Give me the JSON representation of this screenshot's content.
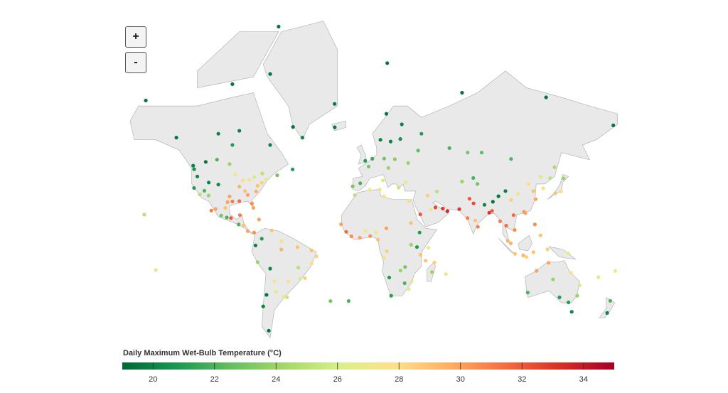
{
  "zoom_controls": [
    "+",
    "-"
  ],
  "legend": {
    "title": "Daily Maximum Wet-Bulb Temperature (°C)",
    "range": [
      19,
      35
    ],
    "ticks": [
      20,
      22,
      24,
      26,
      28,
      30,
      32,
      34
    ],
    "colors": [
      "#006837",
      "#1a9850",
      "#66bd63",
      "#a6d96a",
      "#d9ef8b",
      "#fee08b",
      "#fdae61",
      "#f46d43",
      "#d73027",
      "#a50026"
    ]
  },
  "points": [
    {
      "lon": -74,
      "lat": 40.7,
      "value": 28.5
    },
    {
      "lon": -77,
      "lat": 39,
      "value": 29
    },
    {
      "lon": -84,
      "lat": 33.7,
      "value": 30
    },
    {
      "lon": -90,
      "lat": 30,
      "value": 31.5
    },
    {
      "lon": -95,
      "lat": 29.8,
      "value": 31
    },
    {
      "lon": -97,
      "lat": 32.8,
      "value": 30
    },
    {
      "lon": -81,
      "lat": 28.5,
      "value": 30.5
    },
    {
      "lon": -80,
      "lat": 25.8,
      "value": 30
    },
    {
      "lon": -87.6,
      "lat": 41.9,
      "value": 28
    },
    {
      "lon": -93,
      "lat": 45,
      "value": 27
    },
    {
      "lon": -83,
      "lat": 42.3,
      "value": 27.5
    },
    {
      "lon": -71,
      "lat": 42.4,
      "value": 26.5
    },
    {
      "lon": -90,
      "lat": 38.6,
      "value": 29.5
    },
    {
      "lon": -86,
      "lat": 36,
      "value": 29
    },
    {
      "lon": -78,
      "lat": 35.8,
      "value": 29.5
    },
    {
      "lon": -98.5,
      "lat": 29.4,
      "value": 30
    },
    {
      "lon": -118.2,
      "lat": 34,
      "value": 25
    },
    {
      "lon": -122.4,
      "lat": 37.8,
      "value": 21
    },
    {
      "lon": -122.3,
      "lat": 47.6,
      "value": 20.5
    },
    {
      "lon": -112,
      "lat": 33.4,
      "value": 24
    },
    {
      "lon": -105,
      "lat": 39.7,
      "value": 20
    },
    {
      "lon": -111.9,
      "lat": 40.8,
      "value": 20
    },
    {
      "lon": -115,
      "lat": 36.2,
      "value": 22
    },
    {
      "lon": -120,
      "lat": 44,
      "value": 20
    },
    {
      "lon": -79.4,
      "lat": 43.7,
      "value": 26
    },
    {
      "lon": -73.6,
      "lat": 45.5,
      "value": 25
    },
    {
      "lon": -114,
      "lat": 51,
      "value": 19.5
    },
    {
      "lon": -123,
      "lat": 49.3,
      "value": 20
    },
    {
      "lon": -97,
      "lat": 50,
      "value": 24
    },
    {
      "lon": -106,
      "lat": 52,
      "value": 22
    },
    {
      "lon": -63,
      "lat": 44.6,
      "value": 23
    },
    {
      "lon": -105,
      "lat": 62,
      "value": 20
    },
    {
      "lon": -135,
      "lat": 60.7,
      "value": 19.5
    },
    {
      "lon": -95,
      "lat": 58,
      "value": 21
    },
    {
      "lon": -68,
      "lat": 58,
      "value": 20
    },
    {
      "lon": -52,
      "lat": 47.5,
      "value": 21
    },
    {
      "lon": -99,
      "lat": 19.4,
      "value": 22
    },
    {
      "lon": -103,
      "lat": 20.7,
      "value": 23
    },
    {
      "lon": -100,
      "lat": 25.7,
      "value": 29
    },
    {
      "lon": -89.6,
      "lat": 21,
      "value": 31
    },
    {
      "lon": -96,
      "lat": 19,
      "value": 32
    },
    {
      "lon": -107,
      "lat": 25,
      "value": 30
    },
    {
      "lon": -110,
      "lat": 24,
      "value": 31
    },
    {
      "lon": -90.5,
      "lat": 14.6,
      "value": 22
    },
    {
      "lon": -87,
      "lat": 14,
      "value": 29
    },
    {
      "lon": -84,
      "lat": 10,
      "value": 30
    },
    {
      "lon": -79.5,
      "lat": 9,
      "value": 30.5
    },
    {
      "lon": -76,
      "lat": 18,
      "value": 30
    },
    {
      "lon": -51.7,
      "lat": 64.2,
      "value": 19.5
    },
    {
      "lon": -68,
      "lat": 76.5,
      "value": 19.5
    },
    {
      "lon": -22,
      "lat": 70.5,
      "value": 19.5
    },
    {
      "lon": -45,
      "lat": 60.7,
      "value": 20
    },
    {
      "lon": -74,
      "lat": 4.6,
      "value": 21
    },
    {
      "lon": -66.9,
      "lat": 10.5,
      "value": 29
    },
    {
      "lon": -60,
      "lat": 3,
      "value": 28
    },
    {
      "lon": -48.5,
      "lat": -1.4,
      "value": 29
    },
    {
      "lon": -38.5,
      "lat": -3.7,
      "value": 29
    },
    {
      "lon": -60,
      "lat": -3.1,
      "value": 29.5
    },
    {
      "lon": -35,
      "lat": -8,
      "value": 28.5
    },
    {
      "lon": -38.5,
      "lat": -13,
      "value": 28
    },
    {
      "lon": -43.2,
      "lat": -22.9,
      "value": 28.5
    },
    {
      "lon": -46.6,
      "lat": -23.5,
      "value": 26
    },
    {
      "lon": -47.9,
      "lat": -15.8,
      "value": 25
    },
    {
      "lon": -58.4,
      "lat": -34.6,
      "value": 27.5
    },
    {
      "lon": -56,
      "lat": -34.9,
      "value": 25.5
    },
    {
      "lon": -64,
      "lat": -31.4,
      "value": 26.5
    },
    {
      "lon": -70.6,
      "lat": -33.4,
      "value": 19.5
    },
    {
      "lon": -77,
      "lat": -12,
      "value": 24
    },
    {
      "lon": -78.5,
      "lat": -0.2,
      "value": 20
    },
    {
      "lon": -68,
      "lat": -16.5,
      "value": 20
    },
    {
      "lon": -73,
      "lat": -40,
      "value": 20
    },
    {
      "lon": -65,
      "lat": -25,
      "value": 27
    },
    {
      "lon": -55,
      "lat": -25,
      "value": 28
    },
    {
      "lon": -69,
      "lat": -52,
      "value": 19.5
    },
    {
      "lon": -0.1,
      "lat": 51.5,
      "value": 21
    },
    {
      "lon": 2.3,
      "lat": 48.9,
      "value": 23
    },
    {
      "lon": 13.4,
      "lat": 52.5,
      "value": 23
    },
    {
      "lon": -3.7,
      "lat": 40.4,
      "value": 22
    },
    {
      "lon": 12.5,
      "lat": 41.9,
      "value": 26
    },
    {
      "lon": 16.4,
      "lat": 48.2,
      "value": 24
    },
    {
      "lon": 21,
      "lat": 52.2,
      "value": 23.5
    },
    {
      "lon": 10.7,
      "lat": 59.9,
      "value": 20
    },
    {
      "lon": 18,
      "lat": 59.3,
      "value": 20
    },
    {
      "lon": 24.9,
      "lat": 60.2,
      "value": 20.5
    },
    {
      "lon": 37.6,
      "lat": 55.8,
      "value": 22.5
    },
    {
      "lon": 30.5,
      "lat": 50.5,
      "value": 24
    },
    {
      "lon": 28.9,
      "lat": 41,
      "value": 27
    },
    {
      "lon": 23.7,
      "lat": 38,
      "value": 25.5
    },
    {
      "lon": -9.1,
      "lat": 38.7,
      "value": 23
    },
    {
      "lon": 4.9,
      "lat": 52.4,
      "value": 21.5
    },
    {
      "lon": 26,
      "lat": 65,
      "value": 20
    },
    {
      "lon": 40,
      "lat": 62,
      "value": 21
    },
    {
      "lon": 15,
      "lat": 68,
      "value": 19.5
    },
    {
      "lon": -21.9,
      "lat": 64.1,
      "value": 19.5
    },
    {
      "lon": 60,
      "lat": 56.8,
      "value": 22
    },
    {
      "lon": 73,
      "lat": 55,
      "value": 23
    },
    {
      "lon": 83,
      "lat": 55,
      "value": 22.5
    },
    {
      "lon": 104,
      "lat": 52.3,
      "value": 22
    },
    {
      "lon": 135,
      "lat": 48.5,
      "value": 24.5
    },
    {
      "lon": 131.9,
      "lat": 43.1,
      "value": 25
    },
    {
      "lon": 69,
      "lat": 41.3,
      "value": 24
    },
    {
      "lon": 77,
      "lat": 43.2,
      "value": 22
    },
    {
      "lon": 51,
      "lat": 35.7,
      "value": 25
    },
    {
      "lon": 44.4,
      "lat": 33.3,
      "value": 28.5
    },
    {
      "lon": 50,
      "lat": 26,
      "value": 32.5
    },
    {
      "lon": 55.3,
      "lat": 25.3,
      "value": 33
    },
    {
      "lon": 58.6,
      "lat": 23.6,
      "value": 33.5
    },
    {
      "lon": 46.7,
      "lat": 24.7,
      "value": 27
    },
    {
      "lon": 39.2,
      "lat": 21.5,
      "value": 32
    },
    {
      "lon": 67,
      "lat": 24.9,
      "value": 33
    },
    {
      "lon": 74.3,
      "lat": 31.5,
      "value": 32
    },
    {
      "lon": 77.2,
      "lat": 28.6,
      "value": 32.5
    },
    {
      "lon": 88.4,
      "lat": 22.6,
      "value": 33
    },
    {
      "lon": 72.9,
      "lat": 19,
      "value": 31
    },
    {
      "lon": 80.3,
      "lat": 13,
      "value": 31
    },
    {
      "lon": 78.5,
      "lat": 17.4,
      "value": 29
    },
    {
      "lon": 90.4,
      "lat": 23.8,
      "value": 32
    },
    {
      "lon": 85,
      "lat": 27.7,
      "value": 20
    },
    {
      "lon": 91,
      "lat": 29.6,
      "value": 19.5
    },
    {
      "lon": 95,
      "lat": 33,
      "value": 19.5
    },
    {
      "lon": 100,
      "lat": 36,
      "value": 20
    },
    {
      "lon": 80,
      "lat": 40,
      "value": 23
    },
    {
      "lon": 116.4,
      "lat": 39.9,
      "value": 28
    },
    {
      "lon": 121.5,
      "lat": 31.2,
      "value": 30
    },
    {
      "lon": 113.3,
      "lat": 23.1,
      "value": 30.5
    },
    {
      "lon": 114.2,
      "lat": 22.3,
      "value": 30
    },
    {
      "lon": 104,
      "lat": 30.7,
      "value": 28.5
    },
    {
      "lon": 108.9,
      "lat": 34.3,
      "value": 27
    },
    {
      "lon": 126.9,
      "lat": 37.6,
      "value": 27.5
    },
    {
      "lon": 139.7,
      "lat": 35.7,
      "value": 28
    },
    {
      "lon": 135.5,
      "lat": 34.7,
      "value": 29
    },
    {
      "lon": 141.4,
      "lat": 43,
      "value": 24
    },
    {
      "lon": 125.3,
      "lat": 43.9,
      "value": 26
    },
    {
      "lon": 120,
      "lat": 36,
      "value": 29
    },
    {
      "lon": 106.6,
      "lat": 10.8,
      "value": 30.5
    },
    {
      "lon": 105.8,
      "lat": 21,
      "value": 31.5
    },
    {
      "lon": 100.5,
      "lat": 13.8,
      "value": 31.5
    },
    {
      "lon": 96.2,
      "lat": 16.8,
      "value": 31
    },
    {
      "lon": 101.7,
      "lat": 3.1,
      "value": 29.5
    },
    {
      "lon": 103.8,
      "lat": 1.3,
      "value": 29.5
    },
    {
      "lon": 106.8,
      "lat": -6.2,
      "value": 29
    },
    {
      "lon": 112.7,
      "lat": -7.3,
      "value": 29.5
    },
    {
      "lon": 121,
      "lat": 14.6,
      "value": 30.5
    },
    {
      "lon": 125,
      "lat": 7,
      "value": 29
    },
    {
      "lon": 115,
      "lat": -8.5,
      "value": 28.5
    },
    {
      "lon": 120,
      "lat": -5,
      "value": 29
    },
    {
      "lon": 130,
      "lat": -3,
      "value": 28.5
    },
    {
      "lon": 145,
      "lat": -6,
      "value": 27
    },
    {
      "lon": 31.2,
      "lat": 30,
      "value": 28
    },
    {
      "lon": 3,
      "lat": 36.7,
      "value": 27
    },
    {
      "lon": -7.6,
      "lat": 33.6,
      "value": 25
    },
    {
      "lon": 10.2,
      "lat": 36.8,
      "value": 28
    },
    {
      "lon": 13.2,
      "lat": 32.9,
      "value": 28
    },
    {
      "lon": -17.4,
      "lat": 14.7,
      "value": 30
    },
    {
      "lon": -4,
      "lat": 5.3,
      "value": 30
    },
    {
      "lon": 3.4,
      "lat": 6.5,
      "value": 30.5
    },
    {
      "lon": 7.5,
      "lat": 9,
      "value": 27
    },
    {
      "lon": 15,
      "lat": 12,
      "value": 30
    },
    {
      "lon": 32.5,
      "lat": 15.6,
      "value": 29
    },
    {
      "lon": 38.7,
      "lat": 9,
      "value": 21
    },
    {
      "lon": 36.8,
      "lat": -1.3,
      "value": 21
    },
    {
      "lon": 39.3,
      "lat": -6.8,
      "value": 29
    },
    {
      "lon": 32.6,
      "lat": 0.3,
      "value": 24
    },
    {
      "lon": 15.3,
      "lat": -4.3,
      "value": 28.5
    },
    {
      "lon": 13.2,
      "lat": -8.8,
      "value": 28
    },
    {
      "lon": 28,
      "lat": -26.2,
      "value": 22
    },
    {
      "lon": 18.4,
      "lat": -33.9,
      "value": 21
    },
    {
      "lon": 31,
      "lat": -29.9,
      "value": 26.5
    },
    {
      "lon": 33,
      "lat": -25,
      "value": 27
    },
    {
      "lon": 28.3,
      "lat": -15.4,
      "value": 23
    },
    {
      "lon": 47.5,
      "lat": -18.9,
      "value": 24
    },
    {
      "lon": 49.3,
      "lat": -12.3,
      "value": 28.5
    },
    {
      "lon": 45,
      "lat": -1.9,
      "value": 27
    },
    {
      "lon": 43,
      "lat": -11,
      "value": 29
    },
    {
      "lon": 25,
      "lat": -17.8,
      "value": 24
    },
    {
      "lon": 17,
      "lat": -22.5,
      "value": 21
    },
    {
      "lon": -13.7,
      "lat": 9.5,
      "value": 31.5
    },
    {
      "lon": -10,
      "lat": 6.3,
      "value": 30.5
    },
    {
      "lon": 0,
      "lat": 10,
      "value": 27
    },
    {
      "lon": 9,
      "lat": 4,
      "value": 29
    },
    {
      "lon": 151.2,
      "lat": -33.9,
      "value": 24
    },
    {
      "lon": 145,
      "lat": -37.8,
      "value": 21
    },
    {
      "lon": 153,
      "lat": -27.5,
      "value": 26
    },
    {
      "lon": 115.9,
      "lat": -32,
      "value": 22
    },
    {
      "lon": 138.6,
      "lat": -34.9,
      "value": 21
    },
    {
      "lon": 130.8,
      "lat": -12.5,
      "value": 30
    },
    {
      "lon": 146.8,
      "lat": -19.3,
      "value": 28
    },
    {
      "lon": 133.9,
      "lat": -23.7,
      "value": 24
    },
    {
      "lon": 122.2,
      "lat": -18,
      "value": 30
    },
    {
      "lon": 174.8,
      "lat": -36.9,
      "value": 22
    },
    {
      "lon": 172.6,
      "lat": -43.5,
      "value": 20
    },
    {
      "lon": 147.3,
      "lat": -42.9,
      "value": 20
    },
    {
      "lon": -157.9,
      "lat": 21.3,
      "value": 25
    },
    {
      "lon": -149.6,
      "lat": -17.5,
      "value": 27
    },
    {
      "lon": 178.4,
      "lat": -18.1,
      "value": 27.5
    },
    {
      "lon": 166.4,
      "lat": -22.3,
      "value": 26
    },
    {
      "lon": -25,
      "lat": -37,
      "value": 23
    },
    {
      "lon": -12,
      "lat": -37,
      "value": 22
    },
    {
      "lon": 57.5,
      "lat": -20.2,
      "value": 27
    },
    {
      "lon": -95,
      "lat": 74.7,
      "value": 19.5
    },
    {
      "lon": -62,
      "lat": 82.5,
      "value": 19.5
    },
    {
      "lon": 15.6,
      "lat": 78.2,
      "value": 19.5
    },
    {
      "lon": 69,
      "lat": 73,
      "value": 19.5
    },
    {
      "lon": 129,
      "lat": 72,
      "value": 19.5
    },
    {
      "lon": 177,
      "lat": 64.7,
      "value": 19.5
    },
    {
      "lon": -156.8,
      "lat": 71.3,
      "value": 19.5
    },
    {
      "lon": -90,
      "lat": 63,
      "value": 20
    }
  ]
}
